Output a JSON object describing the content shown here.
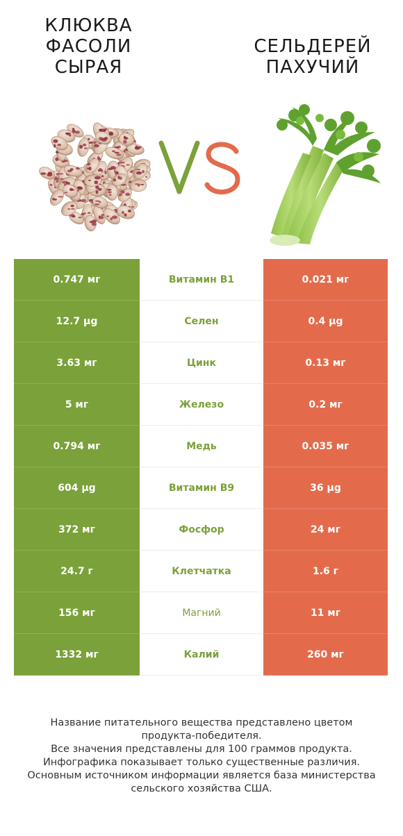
{
  "titles": {
    "left": [
      "КЛЮКВА",
      "ФАСОЛИ",
      "СЫРАЯ"
    ],
    "right": [
      "СЕЛЬДЕРЕЙ",
      "ПАХУЧИЙ"
    ]
  },
  "vs_text": "VS",
  "colors": {
    "winner_left": "#7ba13a",
    "winner_right": "#e36b4b"
  },
  "rows": [
    {
      "left": "0.747 мг",
      "nutrient": "Витамин B1",
      "right": "0.021 мг",
      "winner": "left"
    },
    {
      "left": "12.7 µg",
      "nutrient": "Селен",
      "right": "0.4 µg",
      "winner": "left"
    },
    {
      "left": "3.63 мг",
      "nutrient": "Цинк",
      "right": "0.13 мг",
      "winner": "left"
    },
    {
      "left": "5 мг",
      "nutrient": "Железо",
      "right": "0.2 мг",
      "winner": "left"
    },
    {
      "left": "0.794 мг",
      "nutrient": "Медь",
      "right": "0.035 мг",
      "winner": "left"
    },
    {
      "left": "604 µg",
      "nutrient": "Витамин B9",
      "right": "36 µg",
      "winner": "left"
    },
    {
      "left": "372 мг",
      "nutrient": "Фосфор",
      "right": "24 мг",
      "winner": "left"
    },
    {
      "left": "24.7 г",
      "nutrient": "Клетчатка",
      "right": "1.6 г",
      "winner": "left"
    },
    {
      "left": "156 мг",
      "nutrient": "Магний",
      "right": "11 мг",
      "winner": "left"
    },
    {
      "left": "1332 мг",
      "nutrient": "Калий",
      "right": "260 мг",
      "winner": "left"
    }
  ],
  "footer": [
    "Название питательного вещества представлено цветом",
    "продукта-победителя.",
    "Все значения представлены для 100 граммов продукта.",
    "Инфографика показывает только существенные различия.",
    "Основным источником информации является база министерства",
    "сельского хозяйства США."
  ]
}
